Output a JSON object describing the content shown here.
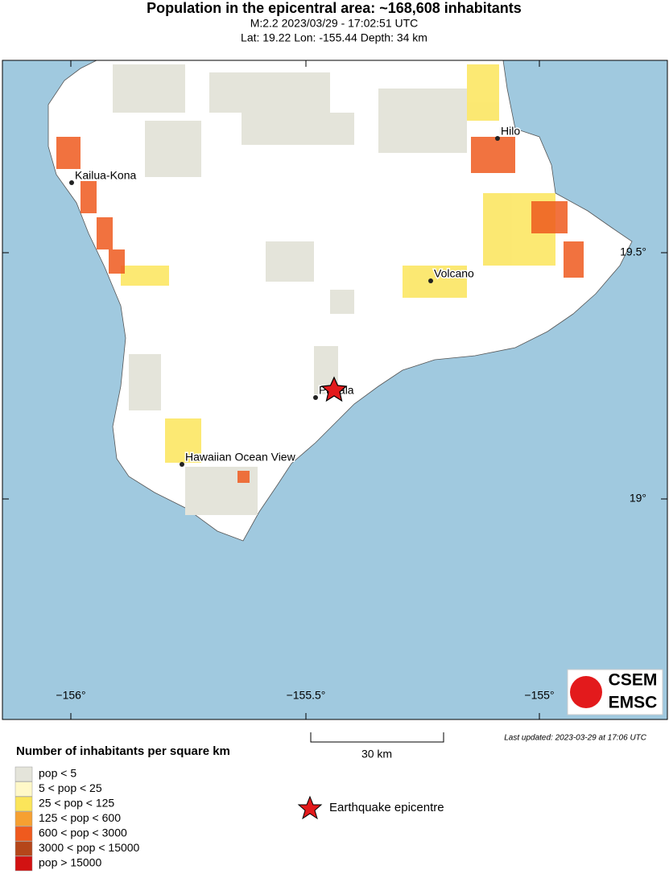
{
  "header": {
    "title": "Population in the epicentral area: ~168,608 inhabitants",
    "lines": [
      "M:2.2 2023/03/29 - 17:02:51 UTC",
      "Lat: 19.22 Lon: -155.44 Depth: 34 km"
    ]
  },
  "map": {
    "x_ticks": [
      "−156°",
      "−155.5°",
      "−155°"
    ],
    "y_ticks": [
      "19.5°",
      "19°"
    ],
    "places": [
      "Kailua-Kona",
      "Hilo",
      "Volcano",
      "Pahala",
      "Hawaiian Ocean View"
    ],
    "logo": [
      "CSEM",
      "EMSC"
    ]
  },
  "scale_label": "30 km",
  "last_updated": "Last updated: 2023-03-29 at 17:06 UTC",
  "legend": {
    "title": "Number of inhabitants per square km",
    "items": [
      {
        "label": "pop < 5",
        "color": "#e4e4da"
      },
      {
        "label": "5 < pop < 25",
        "color": "#fff8c8"
      },
      {
        "label": "25 < pop < 125",
        "color": "#fbe55a"
      },
      {
        "label": "125 < pop < 600",
        "color": "#f6a031"
      },
      {
        "label": "600 < pop < 3000",
        "color": "#ef5a1e"
      },
      {
        "label": "3000 < pop < 15000",
        "color": "#b5461a"
      },
      {
        "label": "pop > 15000",
        "color": "#d21212"
      }
    ],
    "epicentre_label": "Earthquake epicentre"
  }
}
